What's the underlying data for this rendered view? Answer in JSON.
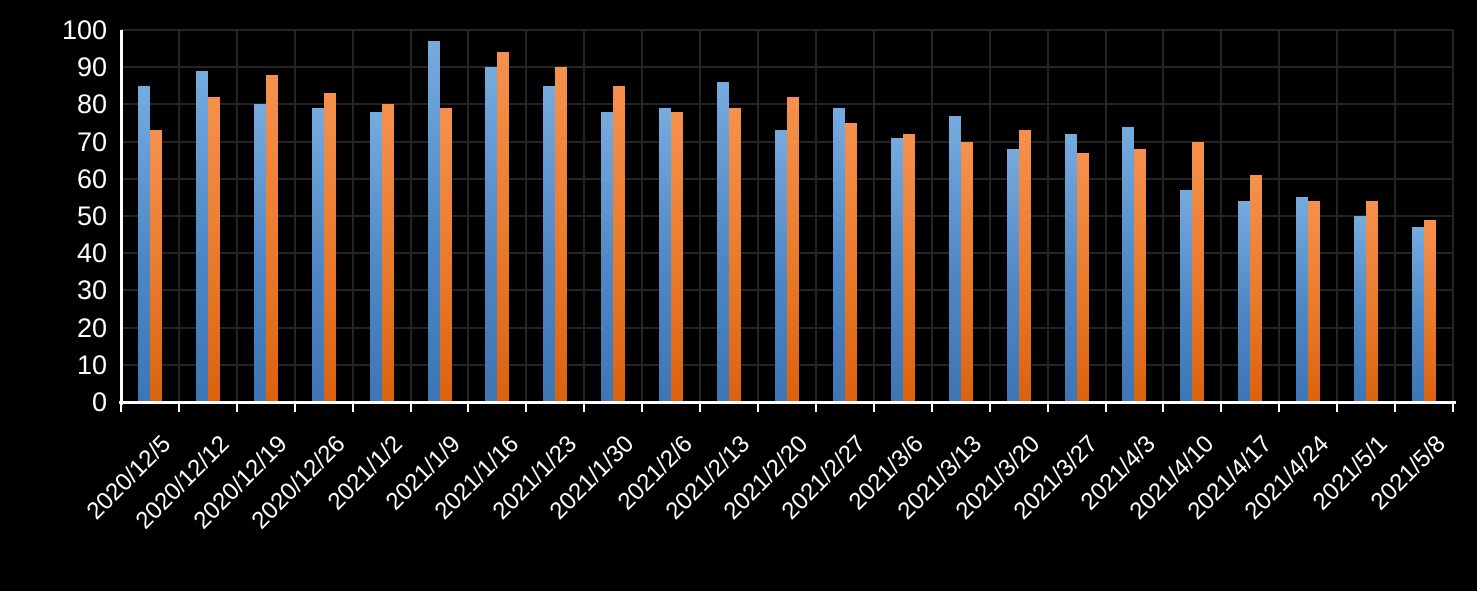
{
  "chart_data": {
    "type": "bar",
    "title": "",
    "categories": [
      "2020/12/5",
      "2020/12/12",
      "2020/12/19",
      "2020/12/26",
      "2021/1/2",
      "2021/1/9",
      "2021/1/16",
      "2021/1/23",
      "2021/1/30",
      "2021/2/6",
      "2021/2/13",
      "2021/2/20",
      "2021/2/27",
      "2021/3/6",
      "2021/3/13",
      "2021/3/20",
      "2021/3/27",
      "2021/4/3",
      "2021/4/10",
      "2021/4/17",
      "2021/4/24",
      "2021/5/1",
      "2021/5/8"
    ],
    "series": [
      {
        "name": "blue",
        "color": "#5B9BD5",
        "values": [
          85,
          89,
          80,
          79,
          78,
          97,
          90,
          85,
          78,
          79,
          86,
          73,
          79,
          71,
          77,
          68,
          72,
          74,
          57,
          54,
          55,
          50,
          47
        ]
      },
      {
        "name": "orange",
        "color": "#ED7D31",
        "values": [
          73,
          82,
          88,
          83,
          80,
          79,
          94,
          90,
          85,
          78,
          79,
          82,
          75,
          72,
          70,
          73,
          67,
          68,
          70,
          61,
          54,
          54,
          49
        ]
      }
    ],
    "ylim": [
      0,
      100
    ],
    "ytick_step": 10,
    "ytick_labels": [
      "0",
      "10",
      "20",
      "30",
      "40",
      "50",
      "60",
      "70",
      "80",
      "90",
      "100"
    ],
    "grid": true,
    "legend": "none",
    "background_color": "#000000",
    "axis_color": "#FFFFFF",
    "gridline_color": "#242424",
    "text_color": "#FFFFFF"
  }
}
